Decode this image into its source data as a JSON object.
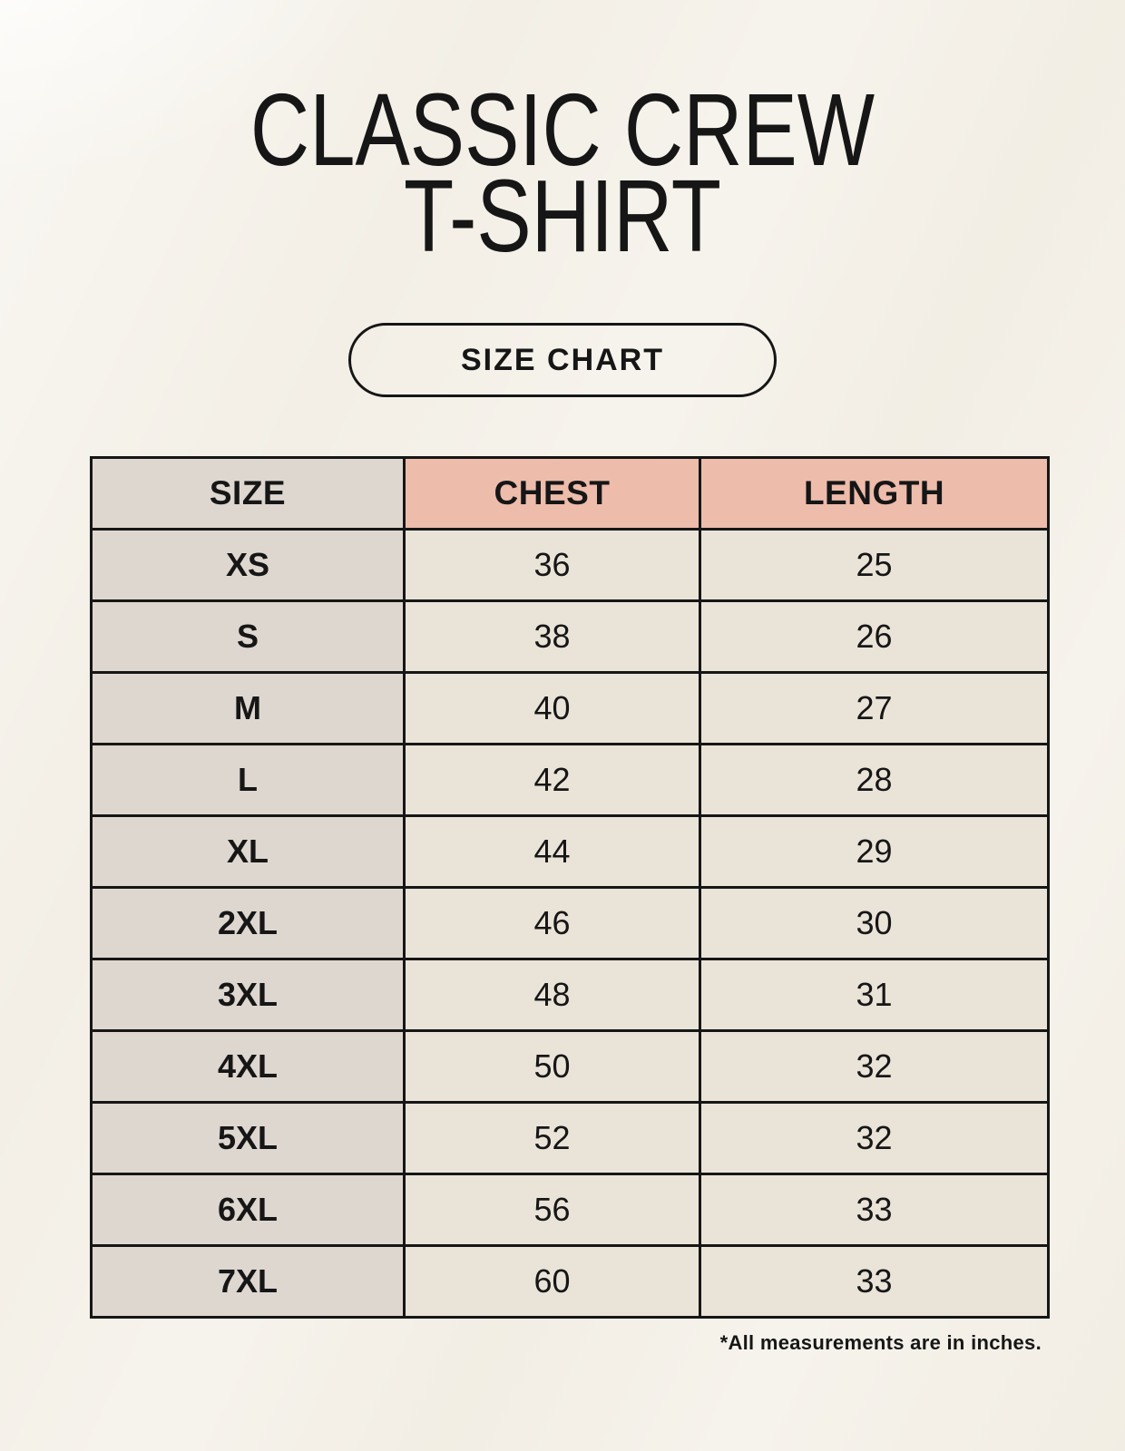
{
  "colors": {
    "background": "#f3efe6",
    "header_pink": "#eebcab",
    "size_column_gray": "#ded7d0",
    "cell_cream": "#eae3d8",
    "border_black": "#161616",
    "text": "#161616"
  },
  "page": {
    "title_line1": "CLASSIC CREW",
    "title_line2": "T-SHIRT",
    "size_chart_button_label": "SIZE CHART",
    "footnote": "*All measurements are in inches."
  },
  "chart_data": {
    "type": "table",
    "title": "CLASSIC CREW T-SHIRT",
    "columns": [
      "SIZE",
      "CHEST",
      "LENGTH"
    ],
    "rows": [
      [
        "XS",
        36,
        25
      ],
      [
        "S",
        38,
        26
      ],
      [
        "M",
        40,
        27
      ],
      [
        "L",
        42,
        28
      ],
      [
        "XL",
        44,
        29
      ],
      [
        "2XL",
        46,
        30
      ],
      [
        "3XL",
        48,
        31
      ],
      [
        "4XL",
        50,
        32
      ],
      [
        "5XL",
        52,
        32
      ],
      [
        "6XL",
        56,
        33
      ],
      [
        "7XL",
        60,
        33
      ]
    ],
    "units": "inches"
  }
}
